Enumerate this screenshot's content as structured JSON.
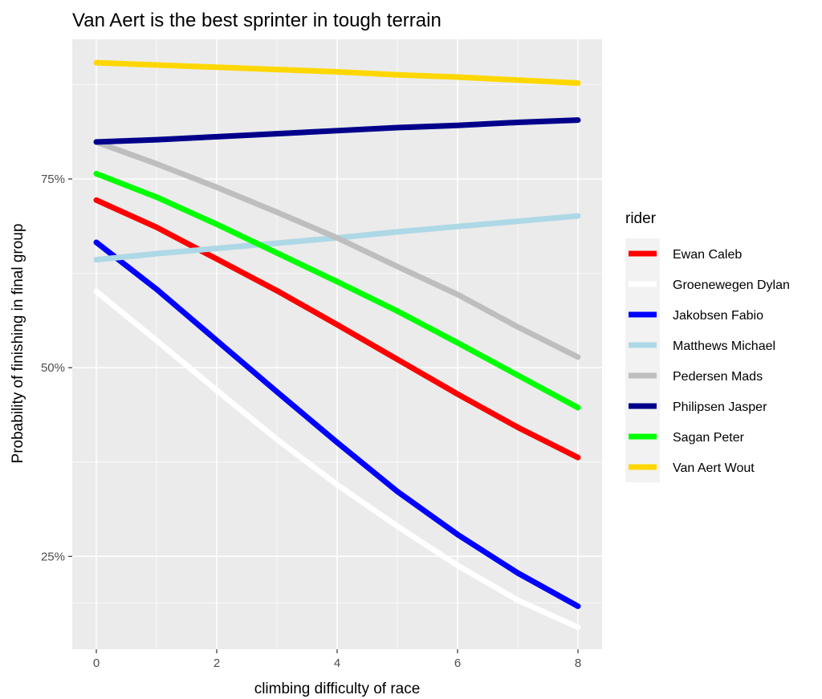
{
  "chart_data": {
    "type": "line",
    "title": "Van Aert is the best sprinter in tough terrain",
    "xlabel": "climbing difficulty of race",
    "ylabel": "Probability of finishing in final group",
    "x_ticks": [
      0,
      2,
      4,
      6,
      8
    ],
    "y_ticks": [
      0.25,
      0.5,
      0.75
    ],
    "y_tick_labels": [
      "25%",
      "50%",
      "75%"
    ],
    "x_tick_labels": [
      "0",
      "2",
      "4",
      "6",
      "8"
    ],
    "xlim": [
      -0.4,
      8.4
    ],
    "ylim": [
      0.127,
      0.935
    ],
    "grid": true,
    "legend_title": "rider",
    "legend_position": "right",
    "x": [
      0,
      1,
      2,
      3,
      4,
      5,
      6,
      7,
      8
    ],
    "series": [
      {
        "name": "Ewan Caleb",
        "color": "#FF0000",
        "values": [
          0.722,
          0.686,
          0.644,
          0.602,
          0.557,
          0.511,
          0.465,
          0.421,
          0.381
        ]
      },
      {
        "name": "Groenewegen Dylan",
        "color": "#FFFFFF",
        "values": [
          0.601,
          0.536,
          0.47,
          0.405,
          0.345,
          0.29,
          0.238,
          0.192,
          0.156
        ]
      },
      {
        "name": "Jakobsen Fabio",
        "color": "#0000FF",
        "values": [
          0.666,
          0.604,
          0.536,
          0.468,
          0.401,
          0.336,
          0.279,
          0.228,
          0.184
        ]
      },
      {
        "name": "Matthews Michael",
        "color": "#ADD8E6",
        "values": [
          0.643,
          0.651,
          0.658,
          0.665,
          0.672,
          0.68,
          0.687,
          0.694,
          0.701
        ]
      },
      {
        "name": "Pedersen Mads",
        "color": "#BEBEBE",
        "values": [
          0.799,
          0.77,
          0.739,
          0.706,
          0.672,
          0.634,
          0.597,
          0.554,
          0.514
        ]
      },
      {
        "name": "Philipsen Jasper",
        "color": "#00008B",
        "values": [
          0.799,
          0.802,
          0.806,
          0.81,
          0.814,
          0.818,
          0.821,
          0.825,
          0.828
        ]
      },
      {
        "name": "Sagan Peter",
        "color": "#00FF00",
        "values": [
          0.757,
          0.726,
          0.69,
          0.652,
          0.614,
          0.575,
          0.533,
          0.49,
          0.447
        ]
      },
      {
        "name": "Van Aert Wout",
        "color": "#FFD700",
        "values": [
          0.904,
          0.901,
          0.898,
          0.895,
          0.892,
          0.888,
          0.885,
          0.881,
          0.877
        ]
      }
    ]
  }
}
